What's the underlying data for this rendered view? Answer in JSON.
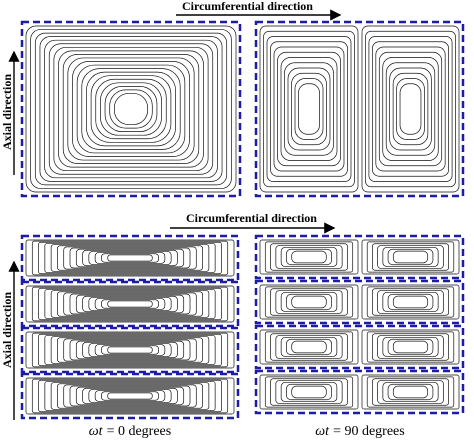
{
  "top": {
    "circumferential_label": "Circumferential direction",
    "axial_label": "Axial direction"
  },
  "bottom": {
    "circumferential_label": "Circumferential direction",
    "axial_label": "Axial direction"
  },
  "captions": [
    {
      "symbol": "ωt",
      "text": "= 0 degrees"
    },
    {
      "symbol": "ωt",
      "text": "= 90 degrees"
    }
  ]
}
